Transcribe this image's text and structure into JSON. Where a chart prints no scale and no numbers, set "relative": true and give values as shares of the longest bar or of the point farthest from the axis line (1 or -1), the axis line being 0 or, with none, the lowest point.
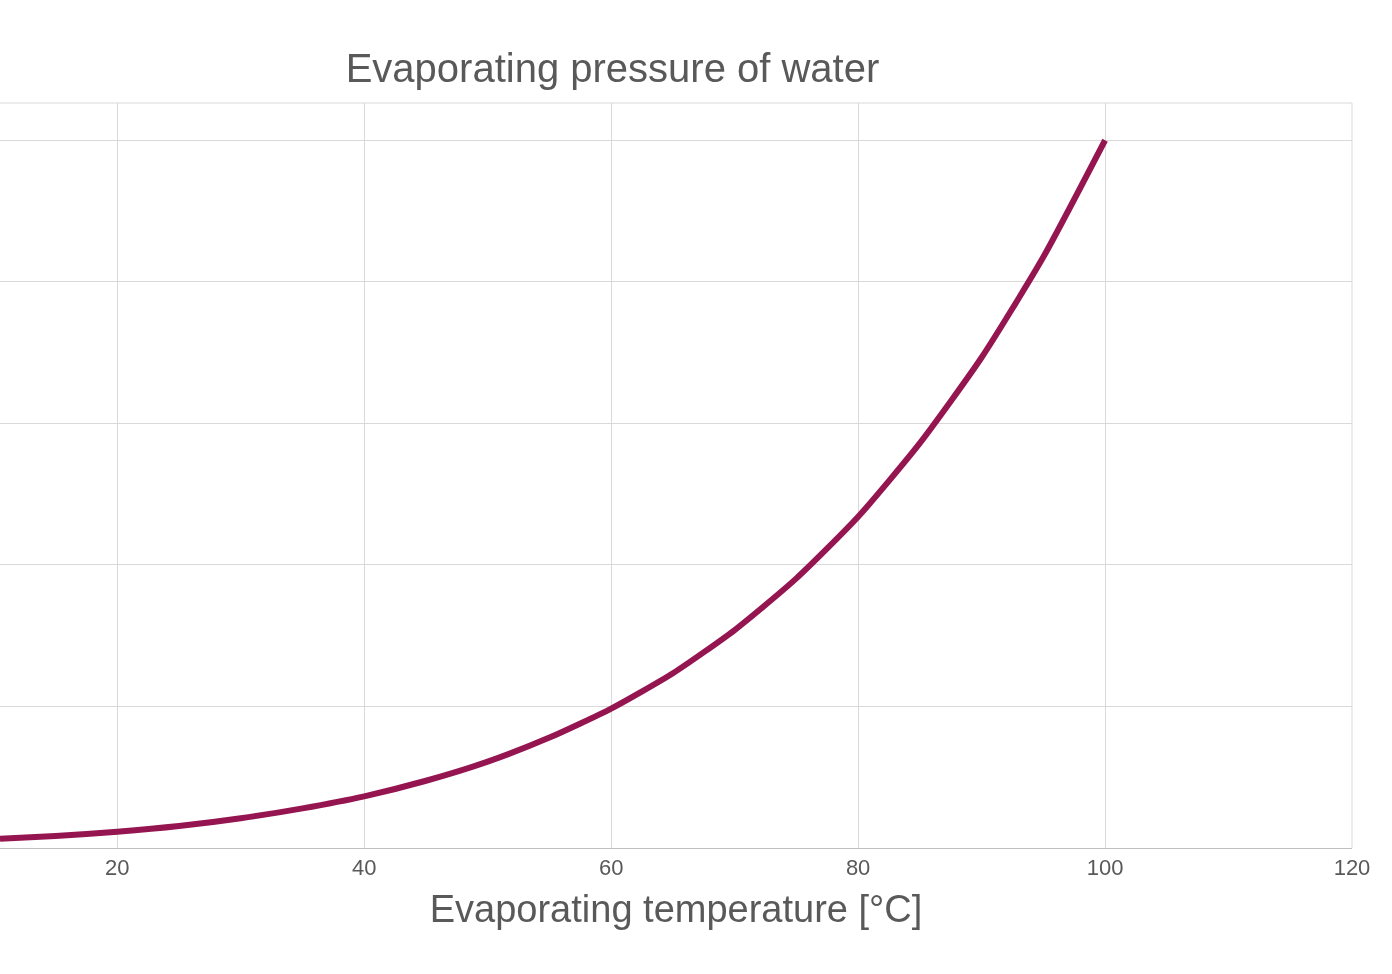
{
  "chart_data": {
    "type": "line",
    "title": "Evaporating pressure of water",
    "xlabel": "Evaporating temperature [°C]",
    "relative": true,
    "x": [
      10.5,
      15,
      20,
      25,
      30,
      35,
      40,
      45,
      50,
      55,
      60,
      65,
      70,
      75,
      80,
      85,
      90,
      95,
      100
    ],
    "series": [
      {
        "color": "#951550",
        "values": [
          0.013,
          0.017,
          0.023,
          0.031,
          0.042,
          0.056,
          0.073,
          0.095,
          0.122,
          0.156,
          0.197,
          0.247,
          0.308,
          0.381,
          0.468,
          0.572,
          0.693,
          0.835,
          1
        ]
      }
    ],
    "xlim": [
      10.5,
      120
    ],
    "xticks": [
      20,
      40,
      60,
      80,
      100,
      120
    ],
    "grid": true,
    "marker": "none",
    "line_style": "solid"
  }
}
